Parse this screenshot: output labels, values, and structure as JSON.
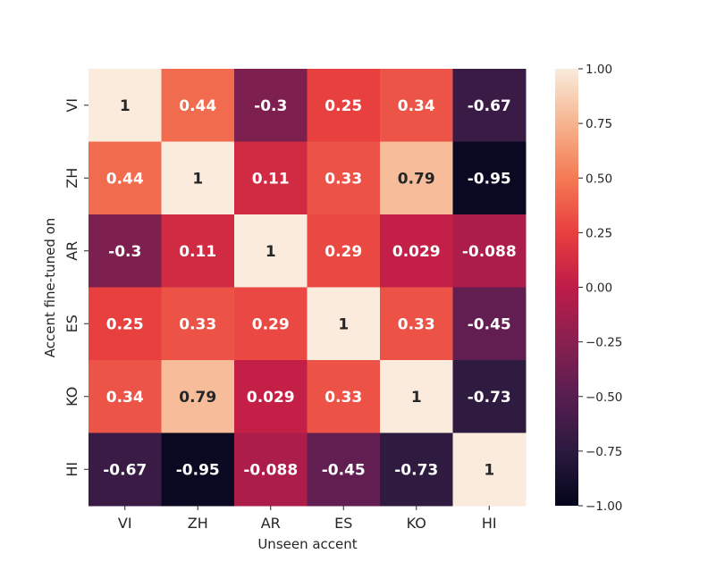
{
  "chart_data": {
    "type": "heatmap",
    "x_categories": [
      "VI",
      "ZH",
      "AR",
      "ES",
      "KO",
      "HI"
    ],
    "y_categories": [
      "VI",
      "ZH",
      "AR",
      "ES",
      "KO",
      "HI"
    ],
    "values": [
      [
        1,
        0.44,
        -0.3,
        0.25,
        0.34,
        -0.67
      ],
      [
        0.44,
        1,
        0.11,
        0.33,
        0.79,
        -0.95
      ],
      [
        -0.3,
        0.11,
        1,
        0.29,
        0.029,
        -0.088
      ],
      [
        0.25,
        0.33,
        0.29,
        1,
        0.33,
        -0.45
      ],
      [
        0.34,
        0.79,
        0.029,
        0.33,
        1,
        -0.73
      ],
      [
        -0.67,
        -0.95,
        -0.088,
        -0.45,
        -0.73,
        1
      ]
    ],
    "annotations": [
      [
        "1",
        "0.44",
        "-0.3",
        "0.25",
        "0.34",
        "-0.67"
      ],
      [
        "0.44",
        "1",
        "0.11",
        "0.33",
        "0.79",
        "-0.95"
      ],
      [
        "-0.3",
        "0.11",
        "1",
        "0.29",
        "0.029",
        "-0.088"
      ],
      [
        "0.25",
        "0.33",
        "0.29",
        "1",
        "0.33",
        "-0.45"
      ],
      [
        "0.34",
        "0.79",
        "0.029",
        "0.33",
        "1",
        "-0.73"
      ],
      [
        "-0.67",
        "-0.95",
        "-0.088",
        "-0.45",
        "-0.73",
        "1"
      ]
    ],
    "xlabel": "Unseen accent",
    "ylabel": "Accent fine-tuned on",
    "vmin": -1.0,
    "vmax": 1.0,
    "colorbar_ticks": [
      1.0,
      0.75,
      0.5,
      0.25,
      0.0,
      -0.25,
      -0.5,
      -0.75,
      -1.0
    ],
    "colorbar_tick_labels": [
      "1.00",
      "0.75",
      "0.50",
      "0.25",
      "0.00",
      "−0.25",
      "−0.50",
      "−0.75",
      "−1.00"
    ],
    "colormap": "rocket"
  }
}
